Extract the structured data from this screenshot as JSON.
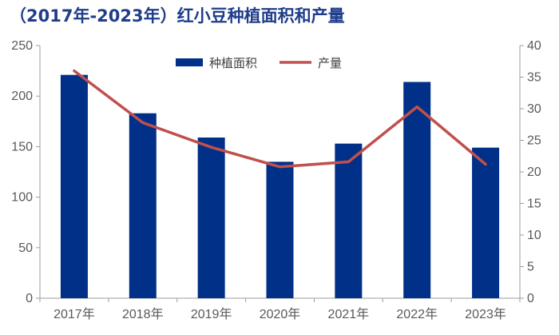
{
  "chart_data": {
    "type": "bar",
    "title": "（2017年-2023年）红小豆种植面积和产量",
    "categories": [
      "2017年",
      "2018年",
      "2019年",
      "2020年",
      "2021年",
      "2022年",
      "2023年"
    ],
    "series": [
      {
        "name": "种植面积",
        "type": "bar",
        "axis": "left",
        "color": "#003087",
        "values": [
          221,
          183,
          159,
          135,
          153,
          214,
          149
        ]
      },
      {
        "name": "产量",
        "type": "line",
        "axis": "right",
        "color": "#C0504D",
        "values": [
          36,
          27.8,
          23.9,
          20.8,
          21.6,
          30.3,
          21.2
        ]
      }
    ],
    "ylim_left": [
      0,
      250
    ],
    "ylim_right": [
      0,
      40
    ],
    "yticks_left": [
      "0",
      "50",
      "100",
      "150",
      "200",
      "250"
    ],
    "yticks_right": [
      "0",
      "5",
      "10",
      "15",
      "20",
      "25",
      "30",
      "35",
      "40"
    ],
    "legend": {
      "position": "top-center",
      "items": [
        "种植面积",
        "产量"
      ]
    },
    "grid": false,
    "xlabel": "",
    "ylabel": "",
    "ylabel_right": ""
  }
}
